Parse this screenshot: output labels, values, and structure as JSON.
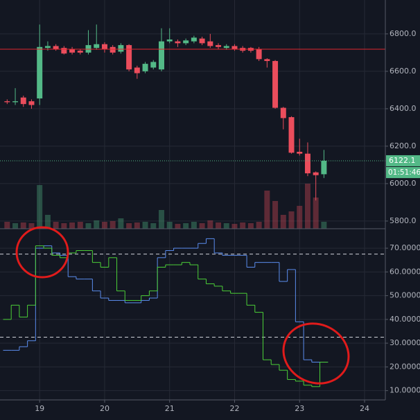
{
  "chart_data": [
    {
      "type": "candlestick",
      "x": [
        18.5,
        18.625,
        18.75,
        18.875,
        19,
        19.125,
        19.25,
        19.375,
        19.5,
        19.625,
        19.75,
        19.875,
        20,
        20.125,
        20.25,
        20.375,
        20.5,
        20.625,
        20.75,
        20.875,
        21,
        21.125,
        21.25,
        21.375,
        21.5,
        21.625,
        21.75,
        21.875,
        22,
        22.125,
        22.25,
        22.375,
        22.5,
        22.625,
        22.75,
        22.875,
        23,
        23.125,
        23.25,
        23.375
      ],
      "open": [
        6440,
        6435,
        6460,
        6440,
        6455,
        6725,
        6735,
        6725,
        6720,
        6710,
        6700,
        6725,
        6745,
        6730,
        6705,
        6740,
        6620,
        6600,
        6620,
        6610,
        6760,
        6760,
        6750,
        6760,
        6775,
        6760,
        6740,
        6725,
        6735,
        6725,
        6725,
        6720,
        6665,
        6655,
        6405,
        6355,
        6170,
        6160,
        6060,
        6050
      ],
      "high": [
        6450,
        6510,
        6470,
        6450,
        6850,
        6760,
        6745,
        6735,
        6730,
        6720,
        6820,
        6850,
        6755,
        6740,
        6750,
        6745,
        6630,
        6650,
        6660,
        6830,
        6830,
        6770,
        6775,
        6790,
        6785,
        6800,
        6750,
        6745,
        6745,
        6735,
        6730,
        6730,
        6670,
        6660,
        6410,
        6360,
        6240,
        6220,
        6065,
        6180
      ],
      "low": [
        6425,
        6420,
        6410,
        6400,
        6420,
        6710,
        6710,
        6690,
        6690,
        6690,
        6690,
        6715,
        6700,
        6690,
        6695,
        6600,
        6560,
        6590,
        6610,
        6600,
        6750,
        6730,
        6740,
        6750,
        6740,
        6725,
        6720,
        6715,
        6710,
        6700,
        6700,
        6655,
        6620,
        6400,
        6290,
        6160,
        6150,
        6040,
        5910,
        6030
      ],
      "close": [
        6435,
        6440,
        6425,
        6420,
        6730,
        6735,
        6720,
        6695,
        6700,
        6700,
        6740,
        6745,
        6720,
        6700,
        6740,
        6610,
        6590,
        6640,
        6650,
        6760,
        6770,
        6750,
        6765,
        6780,
        6750,
        6735,
        6730,
        6735,
        6720,
        6710,
        6710,
        6665,
        6655,
        6405,
        6350,
        6165,
        6160,
        6055,
        6045,
        6122.1
      ],
      "volume": [
        10,
        8,
        9,
        8,
        63,
        20,
        10,
        8,
        9,
        10,
        8,
        12,
        10,
        11,
        15,
        8,
        9,
        10,
        8,
        27,
        10,
        7,
        8,
        10,
        8,
        12,
        9,
        8,
        7,
        9,
        8,
        10,
        55,
        40,
        20,
        25,
        33,
        65,
        45,
        10
      ],
      "up_color": "#53b987",
      "down_color": "#eb4d5c",
      "xlim": [
        18.39,
        24.32
      ],
      "xticks": [
        19,
        20,
        21,
        22,
        23,
        24
      ],
      "ylim": [
        5759,
        6981
      ],
      "yticks": [
        {
          "value": 5800,
          "label": "5800.0"
        },
        {
          "value": 6000,
          "label": "6000.0"
        },
        {
          "value": 6200,
          "label": "6200.0"
        },
        {
          "value": 6400,
          "label": "6400.0"
        },
        {
          "value": 6600,
          "label": "6600.0"
        },
        {
          "value": 6800,
          "label": "6800.0"
        }
      ],
      "grid": true,
      "reference_line": {
        "value": 6718,
        "color": "#e0262f"
      },
      "countdown": "01:51:46"
    },
    {
      "type": "step-line",
      "x": [
        18.5,
        18.625,
        18.75,
        18.875,
        19,
        19.125,
        19.25,
        19.375,
        19.5,
        19.625,
        19.75,
        19.875,
        20,
        20.125,
        20.25,
        20.375,
        20.5,
        20.625,
        20.75,
        20.875,
        21,
        21.125,
        21.25,
        21.375,
        21.5,
        21.625,
        21.75,
        21.875,
        22,
        22.125,
        22.25,
        22.375,
        22.5,
        22.625,
        22.75,
        22.875,
        23,
        23.125,
        23.25,
        23.375
      ],
      "series": [
        {
          "color": "#5b8def",
          "values": [
            27,
            27,
            28.5,
            31,
            70,
            71,
            68,
            67,
            58,
            57,
            57,
            52,
            49,
            48,
            48,
            47,
            47,
            48,
            49,
            66,
            69,
            70,
            70,
            70,
            72,
            74,
            68,
            67,
            67,
            67,
            62,
            64,
            64,
            64,
            56,
            61,
            39,
            23,
            22,
            22
          ]
        },
        {
          "color": "#4cd137",
          "values": [
            40,
            46,
            41,
            46,
            71,
            70,
            67,
            66,
            68,
            69,
            69,
            64,
            62,
            66,
            52,
            48,
            48,
            50,
            52,
            62,
            63,
            63,
            64,
            63,
            57,
            55,
            54,
            52,
            51,
            51,
            46,
            43,
            23,
            21,
            18.6,
            14.7,
            14,
            12.3,
            11.7,
            22
          ]
        }
      ],
      "xlim": [
        18.39,
        24.32
      ],
      "xticks": [
        19,
        20,
        21,
        22,
        23,
        24
      ],
      "ylim": [
        6.1,
        78.2
      ],
      "yticks": [
        {
          "value": 10,
          "label": "10.0000"
        },
        {
          "value": 20,
          "label": "20.0000"
        },
        {
          "value": 30,
          "label": "30.0000"
        },
        {
          "value": 40,
          "label": "40.0000"
        },
        {
          "value": 50,
          "label": "50.0000"
        },
        {
          "value": 60,
          "label": "60.0000"
        },
        {
          "value": 70,
          "label": "70.0000"
        }
      ],
      "levels": [
        67.5,
        32.5
      ],
      "grid": true
    }
  ]
}
